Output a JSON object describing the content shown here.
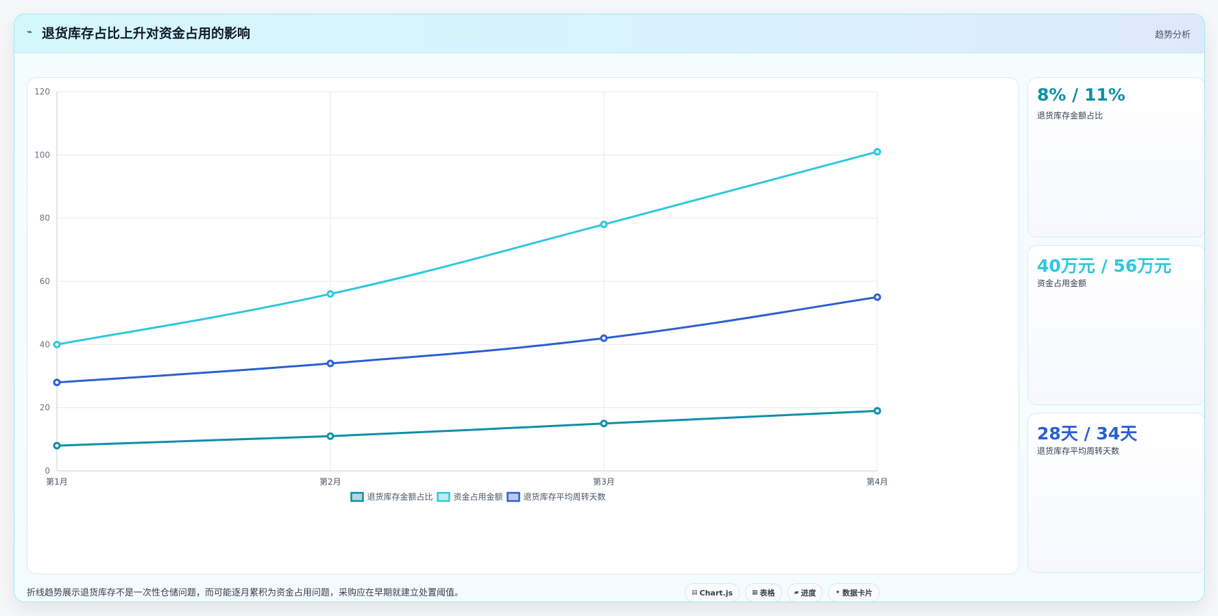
{
  "header": {
    "icon": "trend-line-icon",
    "icon_glyph": "⌁",
    "title": "退货库存占比上升对资金占用的影响",
    "tag": "趋势分析"
  },
  "kpis": [
    {
      "value": "8% / 11%",
      "label": "退货库存金额占比",
      "color": "#0e8fa6"
    },
    {
      "value": "40万元 / 56万元",
      "label": "资金占用金额",
      "color": "#2ec8db"
    },
    {
      "value": "28天 / 34天",
      "label": "退货库存平均周转天数",
      "color": "#2b5fd1"
    }
  ],
  "footnote": "折线趋势展示退货库存不是一次性仓储问题，而可能逐月累积为资金占用问题，采购应在早期就建立处置阈值。",
  "chips": [
    {
      "icon": "chart-icon",
      "glyph": "▤",
      "label": "Chart.js"
    },
    {
      "icon": "table-icon",
      "glyph": "▦",
      "label": "表格"
    },
    {
      "icon": "progress-icon",
      "glyph": "▰",
      "label": "进度"
    },
    {
      "icon": "sparkle-icon",
      "glyph": "✦",
      "label": "数据卡片"
    }
  ],
  "chart_data": {
    "type": "line",
    "categories": [
      "第1月",
      "第2月",
      "第3月",
      "第4月"
    ],
    "ylim": [
      0,
      120
    ],
    "yticks": [
      0,
      20,
      40,
      60,
      80,
      100,
      120
    ],
    "grid": true,
    "legend_position": "bottom",
    "series": [
      {
        "name": "退货库存金额占比",
        "values": [
          8,
          11,
          15,
          19
        ],
        "color": "#0e8fa6"
      },
      {
        "name": "资金占用金额",
        "values": [
          40,
          56,
          78,
          101
        ],
        "color": "#2ec8db"
      },
      {
        "name": "退货库存平均周转天数",
        "values": [
          28,
          34,
          42,
          55
        ],
        "color": "#2b5fd1"
      }
    ]
  }
}
